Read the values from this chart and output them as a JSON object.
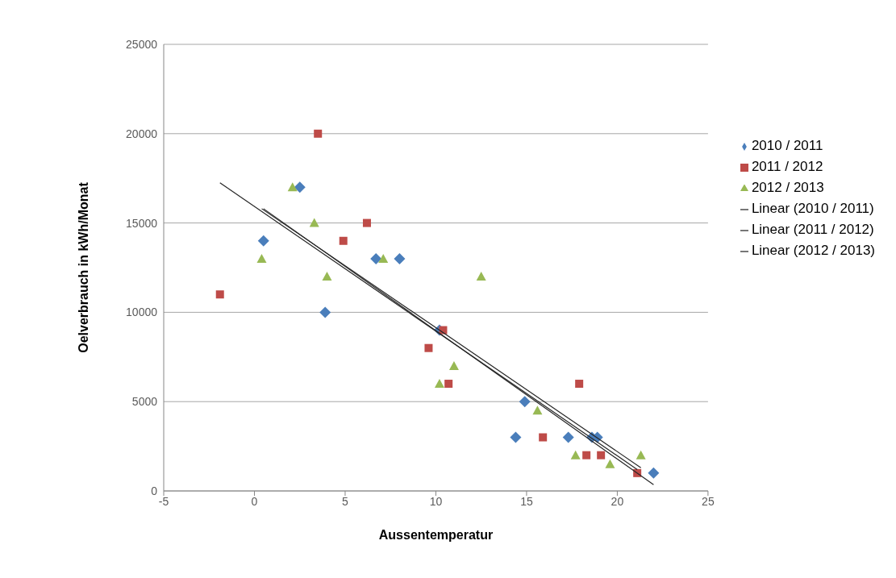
{
  "chart_data": {
    "type": "scatter",
    "xlabel": "Aussentemperatur",
    "ylabel": "Oelverbrauch in kWh/Monat",
    "xlim": [
      -5,
      25
    ],
    "xticks": [
      -5,
      0,
      5,
      10,
      15,
      20,
      25
    ],
    "ylim": [
      0,
      25000
    ],
    "yticks": [
      0,
      5000,
      10000,
      15000,
      20000,
      25000
    ],
    "grid": "y",
    "legend": "right",
    "series": [
      {
        "name": "2010 / 2011",
        "color": "#4a7ebb",
        "marker": "diamond",
        "x": [
          0.5,
          2.5,
          3.9,
          6.7,
          8.0,
          10.2,
          14.4,
          14.9,
          17.3,
          18.6,
          18.9,
          22.0
        ],
        "values": [
          14000,
          17000,
          10000,
          13000,
          13000,
          9000,
          3000,
          5000,
          3000,
          3000,
          3000,
          1000
        ]
      },
      {
        "name": "2011 / 2012",
        "color": "#be4b48",
        "marker": "square",
        "x": [
          -1.9,
          3.5,
          4.9,
          6.2,
          9.6,
          10.4,
          10.7,
          15.9,
          17.9,
          18.3,
          19.1,
          21.1
        ],
        "values": [
          11000,
          20000,
          14000,
          15000,
          8000,
          9000,
          6000,
          3000,
          6000,
          2000,
          2000,
          1000
        ]
      },
      {
        "name": "2012 / 2013",
        "color": "#98b954",
        "marker": "triangle",
        "x": [
          0.4,
          2.1,
          3.3,
          4.0,
          7.1,
          10.2,
          11.0,
          12.5,
          15.6,
          17.7,
          19.6,
          21.3
        ],
        "values": [
          13000,
          17000,
          15000,
          12000,
          13000,
          6000,
          7000,
          12000,
          4500,
          2000,
          1500,
          2000
        ]
      },
      {
        "name": "Linear (2010 / 2011)",
        "type": "line",
        "color": "#262626",
        "marker": "none",
        "line_style": "solid",
        "x": [
          0.5,
          22.0
        ],
        "values": [
          15800,
          350
        ]
      },
      {
        "name": "Linear (2011 / 2012)",
        "type": "line",
        "color": "#262626",
        "marker": "none",
        "line_style": "solid",
        "x": [
          -1.9,
          21.1
        ],
        "values": [
          17250,
          1200
        ]
      },
      {
        "name": "Linear (2012 / 2013)",
        "type": "line",
        "color": "#262626",
        "marker": "none",
        "line_style": "solid",
        "x": [
          0.4,
          21.3
        ],
        "values": [
          15800,
          1300
        ]
      }
    ]
  }
}
